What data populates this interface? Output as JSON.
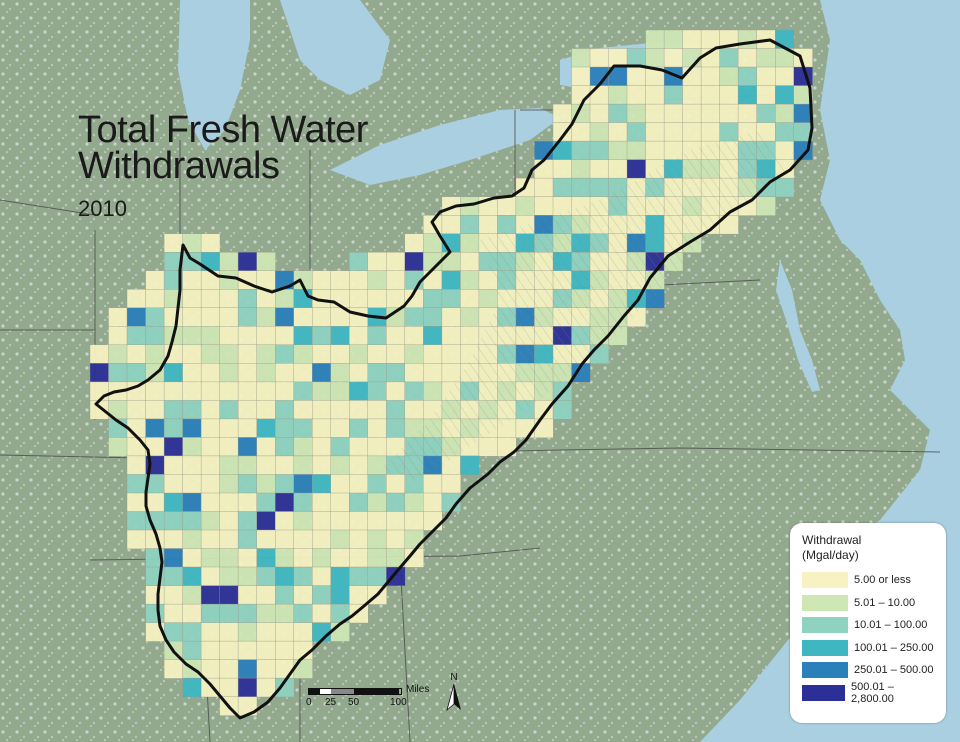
{
  "map": {
    "title_line1": "Total Fresh Water",
    "title_line2": "Withdrawals",
    "year": "2010",
    "colors": {
      "water": "#a9cfe0",
      "land": "#93a98e",
      "urban": "#dfe6e4",
      "state_border": "#4a4a4a",
      "basin_outline": "#111111"
    }
  },
  "legend": {
    "title_line1": "Withdrawal",
    "title_line2": "(Mgal/day)",
    "classes": [
      {
        "label": "5.00 or less",
        "color": "#f6f2c2"
      },
      {
        "label": "5.01 – 10.00",
        "color": "#cfe6b5"
      },
      {
        "label": "10.01 – 100.00",
        "color": "#8fd2c0"
      },
      {
        "label": "100.01 – 250.00",
        "color": "#3fb7c3"
      },
      {
        "label": "250.01 – 500.00",
        "color": "#2b7fbb"
      },
      {
        "label": "500.01 – 2,800.00",
        "color": "#2b2f97"
      }
    ]
  },
  "scale_bar": {
    "unit": "Miles",
    "ticks": [
      "0",
      "25",
      "50",
      "100"
    ]
  },
  "north_arrow": {
    "label": "N",
    "icon": "north-arrow-icon"
  }
}
